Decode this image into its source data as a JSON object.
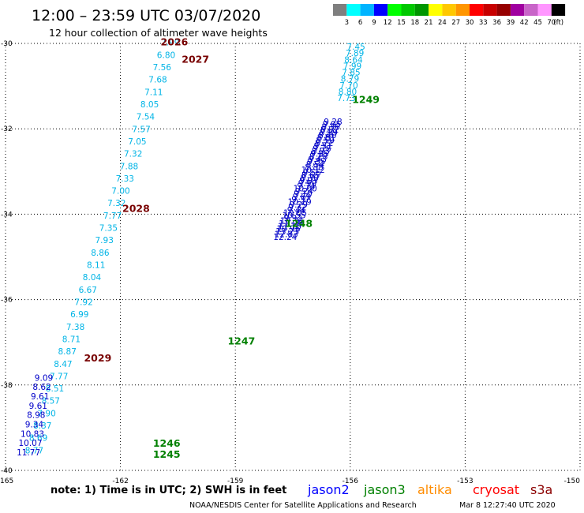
{
  "header": {
    "title": "12:00 – 23:59 UTC 03/07/2020",
    "subtitle": "12 hour collection of altimeter wave heights"
  },
  "colorbar": {
    "colors": [
      "#7f7f7f",
      "#00ffff",
      "#00b4ff",
      "#0000ff",
      "#00ff00",
      "#00c800",
      "#009600",
      "#ffff00",
      "#ffc800",
      "#ff9600",
      "#ff0000",
      "#c80000",
      "#960000",
      "#a000a0",
      "#c864c8",
      "#ff96ff",
      "#000000"
    ],
    "labels": [
      "3",
      "6",
      "9",
      "12",
      "15",
      "18",
      "21",
      "24",
      "27",
      "30",
      "33",
      "36",
      "39",
      "42",
      "45",
      "70"
    ],
    "unit": "(ft)"
  },
  "chart_data": {
    "type": "scatter",
    "xlim": [
      -165,
      -150
    ],
    "ylim": [
      -40,
      -30
    ],
    "xticks": [
      "-165",
      "-162",
      "-159",
      "-156",
      "-153",
      "-150"
    ],
    "yticks": [
      "-30",
      "-32",
      "-34",
      "-36",
      "-38",
      "-40"
    ],
    "grid": "dotted",
    "tracks": [
      {
        "satellite": "cryosat",
        "color": "#00b4e6",
        "start": [
          -160.7,
          -30.05
        ],
        "end": [
          -164.25,
          -39.6
        ],
        "values": [
          "7.99",
          "6.80",
          "7.56",
          "7.68",
          "7.11",
          "8.05",
          "7.54",
          "7.57",
          "7.05",
          "7.32",
          "7.88",
          "7.33",
          "7.00",
          "7.32",
          "7.77",
          "7.35",
          "7.93",
          "8.86",
          "8.11",
          "8.04",
          "6.67",
          "7.92",
          "6.99",
          "7.38",
          "8.71",
          "8.87",
          "8.47",
          "7.77",
          "8.51",
          "8.57",
          "7.90",
          "8.37",
          "8.69",
          "8.77"
        ]
      },
      {
        "satellite": "cryosat",
        "color": "#0000c8",
        "start": [
          -164.0,
          -37.9
        ],
        "end": [
          -164.4,
          -39.65
        ],
        "values": [
          "9.09",
          "8.62",
          "9.61",
          "9.61",
          "8.98",
          "9.34",
          "10.83",
          "10.07",
          "11.77"
        ]
      },
      {
        "satellite": "cryosat",
        "color": "#0064ff",
        "start": [
          -164.0,
          -37.9
        ],
        "end": [
          -164.4,
          -39.65
        ],
        "values": []
      },
      {
        "satellite": "jason3",
        "color": "#00b4e6",
        "start": [
          -155.85,
          -30.15
        ],
        "end": [
          -156.1,
          -31.35
        ],
        "values": [
          "7.45",
          "7.89",
          "8.64",
          "7.99",
          "7.85",
          "8.79",
          "7.70",
          "8.80",
          "7.73"
        ]
      },
      {
        "satellite": "jason3",
        "color": "#0000c8",
        "start": [
          -156.45,
          -31.9
        ],
        "end": [
          -157.7,
          -34.6
        ],
        "values": [
          "9.28",
          "9.05",
          "8.36",
          "8.02",
          "8.99",
          "8.40",
          "8.81",
          "8.50",
          "8.72",
          "9.51",
          "9.78",
          "8.93",
          "9.85",
          "8.28",
          "9.43",
          "9.35",
          "8.54",
          "8.88",
          "10.12",
          "9.55",
          "8.65",
          "8.30",
          "9.03",
          "9.90",
          "9.34",
          "10.00",
          "9.24",
          "9.10",
          "9.69",
          "9.37",
          "10.29",
          "9.29",
          "9.32",
          "9.44",
          "10.05",
          "10.55",
          "9.92",
          "10.34",
          "11.06",
          "11.70",
          "10.96",
          "13.23",
          "12.83",
          "12.24"
        ]
      }
    ],
    "pass_labels": [
      {
        "text": "2026",
        "color": "#780000",
        "lon": -160.95,
        "lat": -30.05
      },
      {
        "text": "2027",
        "color": "#780000",
        "lon": -160.4,
        "lat": -30.45
      },
      {
        "text": "2028",
        "color": "#780000",
        "lon": -161.95,
        "lat": -33.95
      },
      {
        "text": "2029",
        "color": "#780000",
        "lon": -162.95,
        "lat": -37.45
      },
      {
        "text": "1249",
        "color": "#008000",
        "lon": -155.95,
        "lat": -31.4
      },
      {
        "text": "1248",
        "color": "#008000",
        "lon": -157.7,
        "lat": -34.3
      },
      {
        "text": "1247",
        "color": "#008000",
        "lon": -159.2,
        "lat": -37.05
      },
      {
        "text": "1246",
        "color": "#008000",
        "lon": -161.15,
        "lat": -39.45
      },
      {
        "text": "1245",
        "color": "#008000",
        "lon": -161.15,
        "lat": -39.7
      }
    ]
  },
  "footer": {
    "note": "note: 1) Time is in UTC; 2) SWH is in feet",
    "satellites": [
      {
        "name": "jason2",
        "color": "#0000ff"
      },
      {
        "name": "jason3",
        "color": "#008000"
      },
      {
        "name": "altika",
        "color": "#ff8c00"
      },
      {
        "name": "cryosat",
        "color": "#ff0000"
      },
      {
        "name": "s3a",
        "color": "#8b0000"
      }
    ],
    "credit": "NOAA/NESDIS Center for Satellite Applications and Research",
    "timestamp": "Mar  8 12:27:40 UTC 2020"
  }
}
